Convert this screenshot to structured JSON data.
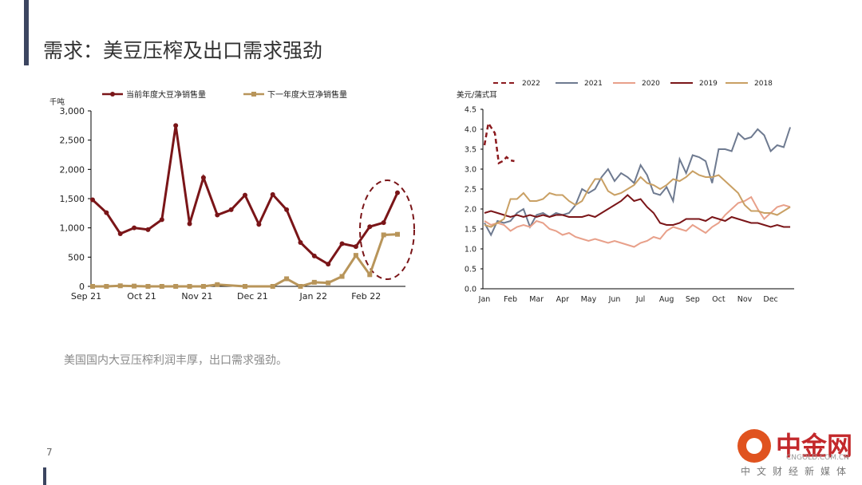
{
  "slide": {
    "title": "需求：美豆压榨及出口需求强劲",
    "subtitle": "美国国内大豆压榨利润丰厚，出口需求强劲。",
    "page_number": "7"
  },
  "logo": {
    "name": "中金网",
    "tagline": "中文财经新媒体",
    "url": "CNGOLD.COM.CN"
  },
  "chart_data": [
    {
      "type": "line",
      "unit_label": "千吨",
      "x_ticks": [
        "Sep 21",
        "Oct 21",
        "Nov 21",
        "Dec 21",
        "Jan 22",
        "Feb 22"
      ],
      "y_ticks": [
        "3,000",
        "2,500",
        "2,000",
        "1,500",
        "1,000",
        "500",
        "0"
      ],
      "ylim": [
        0,
        3000
      ],
      "legend_position": "top",
      "annotation": "dashed ellipse highlighting the latest weeks",
      "series": [
        {
          "name": "当前年度大豆净销售量",
          "color": "#7a1518",
          "marker": "circle",
          "x": [
            0,
            1,
            2,
            3,
            4,
            5,
            6,
            7,
            8,
            9,
            10,
            11,
            12,
            13,
            14,
            15,
            16,
            17,
            18,
            19,
            20,
            21,
            22
          ],
          "values": [
            1480,
            1260,
            900,
            1000,
            970,
            1140,
            2750,
            1070,
            1860,
            1220,
            1310,
            1560,
            1060,
            1570,
            1310,
            750,
            520,
            380,
            730,
            680,
            1020,
            1090,
            1600
          ]
        },
        {
          "name": "下一年度大豆净销售量",
          "color": "#b8955a",
          "marker": "square",
          "x": [
            0,
            1,
            2,
            3,
            4,
            5,
            6,
            7,
            8,
            9,
            11,
            13,
            14,
            15,
            16,
            17,
            18,
            19,
            20,
            21,
            22
          ],
          "values": [
            0,
            0,
            10,
            5,
            0,
            0,
            0,
            0,
            0,
            30,
            0,
            0,
            130,
            0,
            70,
            60,
            170,
            530,
            200,
            880,
            890
          ]
        }
      ]
    },
    {
      "type": "line",
      "unit_label": "美元/蒲式耳",
      "x_ticks": [
        "Jan",
        "Feb",
        "Mar",
        "Apr",
        "May",
        "Jun",
        "Jul",
        "Aug",
        "Sep",
        "Oct",
        "Nov",
        "Dec"
      ],
      "y_ticks": [
        "4.5",
        "4.0",
        "3.5",
        "3.0",
        "2.5",
        "2.0",
        "1.5",
        "1.0",
        "0.5",
        "0.0"
      ],
      "ylim": [
        0,
        4.5
      ],
      "legend_position": "top",
      "series": [
        {
          "name": "2022",
          "color": "#8b1a1e",
          "dashed": true,
          "x": [
            0,
            0.15,
            0.25,
            0.4,
            0.55,
            0.7,
            0.85,
            1.0,
            1.15
          ],
          "values": [
            3.6,
            4.15,
            4.05,
            3.9,
            3.15,
            3.2,
            3.3,
            3.22,
            3.2
          ]
        },
        {
          "name": "2021",
          "color": "#6e7a90",
          "x": [
            0,
            0.25,
            0.5,
            0.75,
            1.0,
            1.25,
            1.5,
            1.75,
            2.0,
            2.25,
            2.5,
            2.75,
            3.0,
            3.25,
            3.5,
            3.75,
            4.0,
            4.25,
            4.5,
            4.75,
            5.0,
            5.25,
            5.5,
            5.75,
            6.0,
            6.25,
            6.5,
            6.75,
            7.0,
            7.25,
            7.5,
            7.75,
            8.0,
            8.25,
            8.5,
            8.75,
            9.0,
            9.25,
            9.5,
            9.75,
            10.0,
            10.25,
            10.5,
            10.75,
            11.0,
            11.25,
            11.5,
            11.75
          ],
          "values": [
            1.65,
            1.35,
            1.7,
            1.65,
            1.7,
            1.9,
            2.0,
            1.55,
            1.85,
            1.9,
            1.8,
            1.9,
            1.85,
            1.9,
            2.1,
            2.5,
            2.4,
            2.5,
            2.8,
            3.0,
            2.7,
            2.9,
            2.8,
            2.65,
            3.1,
            2.85,
            2.4,
            2.35,
            2.55,
            2.2,
            3.25,
            2.9,
            3.35,
            3.3,
            3.2,
            2.65,
            3.5,
            3.5,
            3.45,
            3.9,
            3.75,
            3.8,
            4.0,
            3.85,
            3.45,
            3.6,
            3.55,
            4.05
          ]
        },
        {
          "name": "2020",
          "color": "#e8a08a",
          "x": [
            0,
            0.25,
            0.5,
            0.75,
            1.0,
            1.25,
            1.5,
            1.75,
            2.0,
            2.25,
            2.5,
            2.75,
            3.0,
            3.25,
            3.5,
            3.75,
            4.0,
            4.25,
            4.5,
            4.75,
            5.0,
            5.25,
            5.5,
            5.75,
            6.0,
            6.25,
            6.5,
            6.75,
            7.0,
            7.25,
            7.5,
            7.75,
            8.0,
            8.25,
            8.5,
            8.75,
            9.0,
            9.25,
            9.5,
            9.75,
            10.0,
            10.25,
            10.5,
            10.75,
            11.0,
            11.25,
            11.5,
            11.75
          ],
          "values": [
            1.7,
            1.6,
            1.65,
            1.6,
            1.45,
            1.55,
            1.6,
            1.55,
            1.7,
            1.65,
            1.5,
            1.45,
            1.35,
            1.4,
            1.3,
            1.25,
            1.2,
            1.25,
            1.2,
            1.15,
            1.2,
            1.15,
            1.1,
            1.05,
            1.15,
            1.2,
            1.3,
            1.25,
            1.45,
            1.55,
            1.5,
            1.45,
            1.6,
            1.5,
            1.4,
            1.55,
            1.65,
            1.85,
            2.0,
            2.15,
            2.2,
            2.3,
            2.0,
            1.75,
            1.9,
            2.05,
            2.1,
            2.05
          ]
        },
        {
          "name": "2019",
          "color": "#7a1518",
          "x": [
            0,
            0.25,
            0.5,
            0.75,
            1.0,
            1.25,
            1.5,
            1.75,
            2.0,
            2.25,
            2.5,
            2.75,
            3.0,
            3.25,
            3.5,
            3.75,
            4.0,
            4.25,
            4.5,
            4.75,
            5.0,
            5.25,
            5.5,
            5.75,
            6.0,
            6.25,
            6.5,
            6.75,
            7.0,
            7.25,
            7.5,
            7.75,
            8.0,
            8.25,
            8.5,
            8.75,
            9.0,
            9.25,
            9.5,
            9.75,
            10.0,
            10.25,
            10.5,
            10.75,
            11.0,
            11.25,
            11.5,
            11.75
          ],
          "values": [
            1.9,
            1.95,
            1.9,
            1.85,
            1.8,
            1.85,
            1.8,
            1.85,
            1.8,
            1.85,
            1.8,
            1.85,
            1.85,
            1.8,
            1.8,
            1.8,
            1.85,
            1.8,
            1.9,
            2.0,
            2.1,
            2.2,
            2.35,
            2.2,
            2.25,
            2.05,
            1.9,
            1.65,
            1.6,
            1.6,
            1.65,
            1.75,
            1.75,
            1.75,
            1.7,
            1.8,
            1.75,
            1.7,
            1.8,
            1.75,
            1.7,
            1.65,
            1.65,
            1.6,
            1.55,
            1.6,
            1.55,
            1.55
          ]
        },
        {
          "name": "2018",
          "color": "#c9a064",
          "x": [
            0,
            0.25,
            0.5,
            0.75,
            1.0,
            1.25,
            1.5,
            1.75,
            2.0,
            2.25,
            2.5,
            2.75,
            3.0,
            3.25,
            3.5,
            3.75,
            4.0,
            4.25,
            4.5,
            4.75,
            5.0,
            5.25,
            5.5,
            5.75,
            6.0,
            6.25,
            6.5,
            6.75,
            7.0,
            7.25,
            7.5,
            7.75,
            8.0,
            8.25,
            8.5,
            8.75,
            9.0,
            9.25,
            9.5,
            9.75,
            10.0,
            10.25,
            10.5,
            10.75,
            11.0,
            11.25,
            11.5,
            11.75
          ],
          "values": [
            1.6,
            1.55,
            1.65,
            1.75,
            2.25,
            2.25,
            2.4,
            2.2,
            2.2,
            2.25,
            2.4,
            2.35,
            2.35,
            2.2,
            2.1,
            2.2,
            2.5,
            2.75,
            2.75,
            2.45,
            2.35,
            2.4,
            2.5,
            2.6,
            2.8,
            2.65,
            2.6,
            2.5,
            2.6,
            2.75,
            2.7,
            2.8,
            2.95,
            2.85,
            2.8,
            2.8,
            2.85,
            2.7,
            2.55,
            2.4,
            2.1,
            1.95,
            1.95,
            1.9,
            1.9,
            1.85,
            1.95,
            2.05
          ]
        }
      ]
    }
  ]
}
